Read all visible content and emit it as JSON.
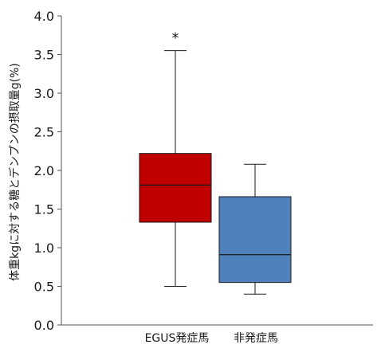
{
  "chart_data": {
    "type": "box",
    "title": "",
    "xlabel": "",
    "ylabel": "体重kgに対する糖とデンプンの摂取量g(%)",
    "ylim": [
      0,
      4.0
    ],
    "yticks": [
      "0.0",
      "0.5",
      "1.0",
      "1.5",
      "2.0",
      "2.5",
      "3.0",
      "3.5",
      "4.0"
    ],
    "grid": false,
    "categories": [
      "EGUS発症馬",
      "非発症馬"
    ],
    "boxes": [
      {
        "category": "EGUS発症馬",
        "min": 0.5,
        "q1": 1.33,
        "median": 1.81,
        "q3": 2.22,
        "max": 3.55,
        "color": "#C00000",
        "annotation": "*"
      },
      {
        "category": "非発症馬",
        "min": 0.4,
        "q1": 0.55,
        "median": 0.91,
        "q3": 1.66,
        "max": 2.08,
        "color": "#4F81BD",
        "annotation": ""
      }
    ]
  }
}
